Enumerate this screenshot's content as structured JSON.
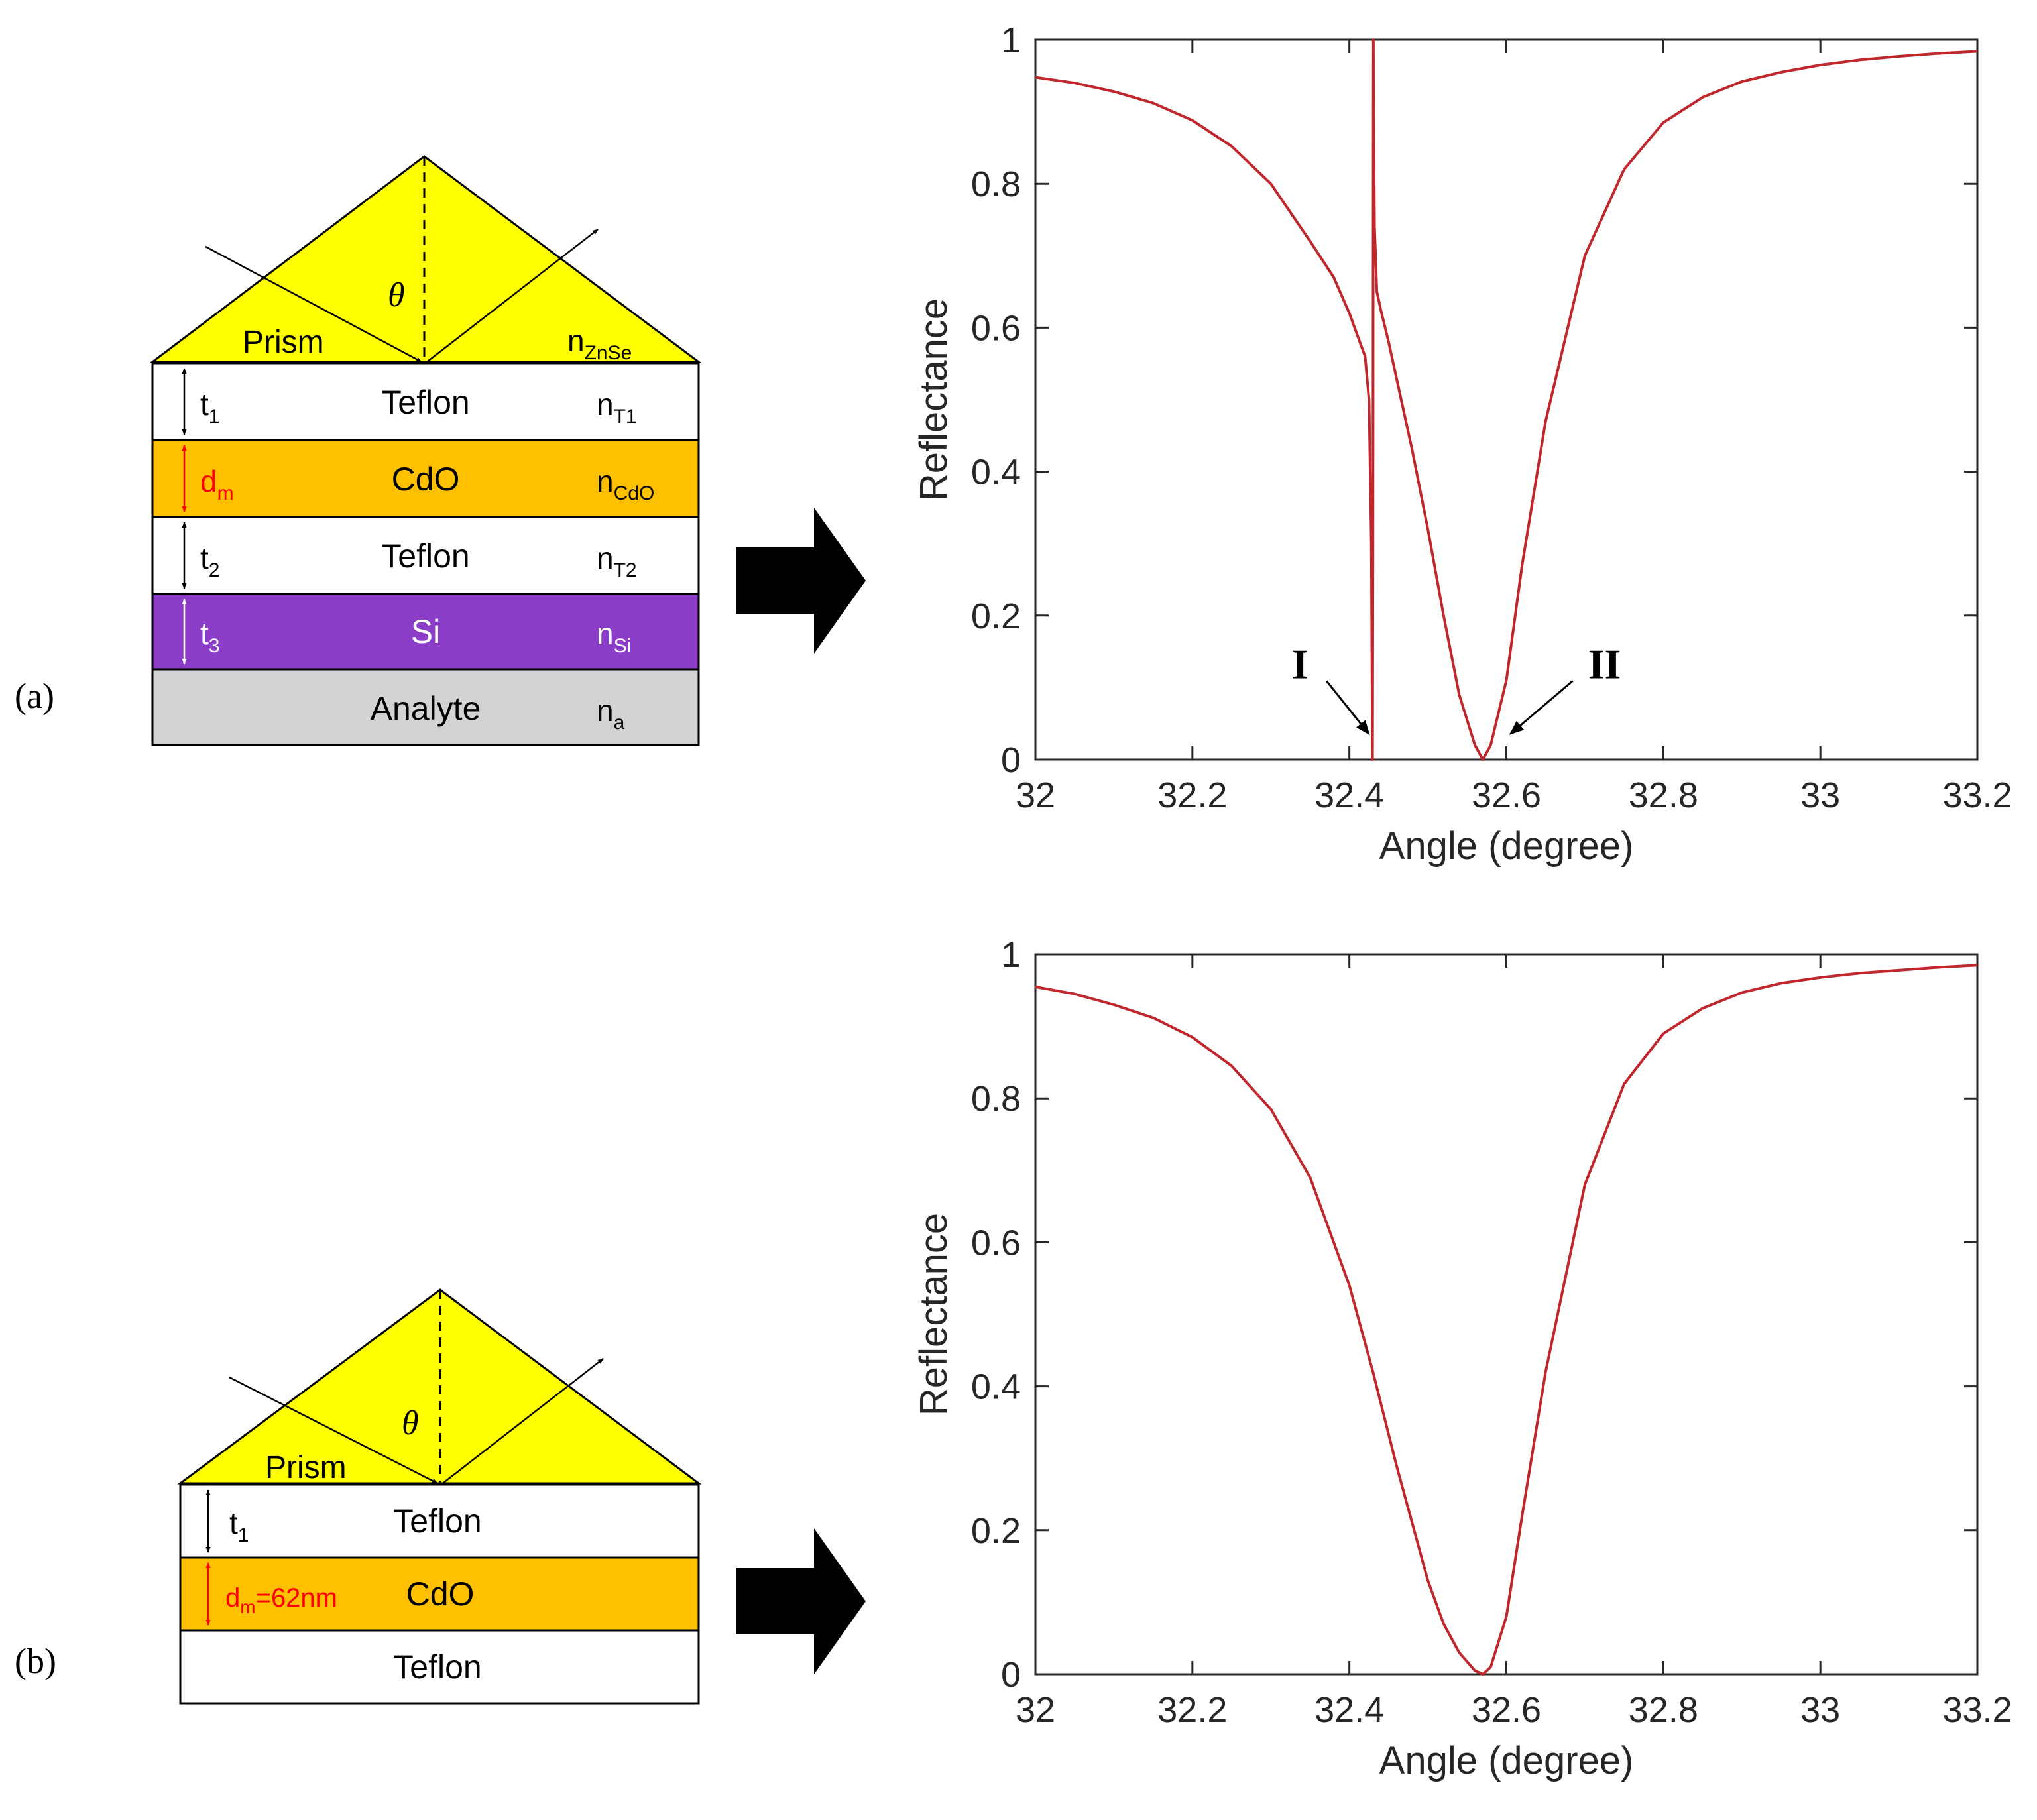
{
  "panels": {
    "a": {
      "label": "(a)",
      "prism": {
        "theta": "θ",
        "name": "Prism",
        "index_base": "n",
        "index_sub": "ZnSe"
      },
      "layers": [
        {
          "label": "Teflon",
          "thick_base": "t",
          "thick_sub": "1",
          "index_base": "n",
          "index_sub": "T1"
        },
        {
          "label": "CdO",
          "thick_base": "d",
          "thick_sub": "m",
          "index_base": "n",
          "index_sub": "CdO"
        },
        {
          "label": "Teflon",
          "thick_base": "t",
          "thick_sub": "2",
          "index_base": "n",
          "index_sub": "T2"
        },
        {
          "label": "Si",
          "thick_base": "t",
          "thick_sub": "3",
          "index_base": "n",
          "index_sub": "Si"
        },
        {
          "label": "Analyte",
          "index_base": "n",
          "index_sub": "a"
        }
      ]
    },
    "b": {
      "label": "(b)",
      "prism": {
        "theta": "θ",
        "name": "Prism"
      },
      "layers": [
        {
          "label": "Teflon",
          "thick_base": "t",
          "thick_sub": "1"
        },
        {
          "label": "CdO",
          "thick_base": "d",
          "thick_sub": "m",
          "thick_suffix": "=62nm"
        },
        {
          "label": "Teflon"
        }
      ]
    }
  },
  "colors": {
    "prism": "#ffff00",
    "cdo": "#ffc000",
    "si": "#8b3dc8",
    "analyte": "#d3d3d3",
    "teflon": "#ffffff",
    "curve": "#c0272d",
    "red_text": "#ff0000",
    "arrow": "#000000"
  },
  "chart_data": [
    {
      "type": "line",
      "title": "",
      "xlabel": "Angle (degree)",
      "ylabel": "Reflectance",
      "xlim": [
        32,
        33.2
      ],
      "ylim": [
        0,
        1
      ],
      "xticks": [
        "32",
        "32.2",
        "32.4",
        "32.6",
        "32.8",
        "33",
        "33.2"
      ],
      "yticks": [
        "0",
        "0.2",
        "0.4",
        "0.6",
        "0.8",
        "1"
      ],
      "annotations": [
        {
          "text": "I",
          "points_to": [
            32.43,
            0.03
          ]
        },
        {
          "text": "II",
          "points_to": [
            32.6,
            0.03
          ]
        }
      ],
      "series": [
        {
          "name": "Reflectance",
          "x": [
            32.0,
            32.05,
            32.1,
            32.15,
            32.2,
            32.25,
            32.3,
            32.35,
            32.38,
            32.4,
            32.41,
            32.42,
            32.425,
            32.428,
            32.429,
            32.4295,
            32.43,
            32.4305,
            32.431,
            32.432,
            32.435,
            32.44,
            32.45,
            32.46,
            32.48,
            32.5,
            32.52,
            32.54,
            32.56,
            32.57,
            32.58,
            32.6,
            32.62,
            32.65,
            32.7,
            32.75,
            32.8,
            32.85,
            32.9,
            32.95,
            33.0,
            33.05,
            33.1,
            33.15,
            33.2
          ],
          "y": [
            0.948,
            0.94,
            0.928,
            0.912,
            0.888,
            0.852,
            0.8,
            0.72,
            0.67,
            0.62,
            0.59,
            0.56,
            0.5,
            0.3,
            0.08,
            0.0,
            0.3,
            1.0,
            0.88,
            0.74,
            0.65,
            0.625,
            0.58,
            0.53,
            0.43,
            0.32,
            0.2,
            0.09,
            0.02,
            0.0,
            0.02,
            0.11,
            0.27,
            0.47,
            0.7,
            0.82,
            0.885,
            0.92,
            0.942,
            0.955,
            0.965,
            0.972,
            0.977,
            0.981,
            0.984
          ]
        }
      ]
    },
    {
      "type": "line",
      "title": "",
      "xlabel": "Angle (degree)",
      "ylabel": "Reflectance",
      "xlim": [
        32,
        33.2
      ],
      "ylim": [
        0,
        1
      ],
      "xticks": [
        "32",
        "32.2",
        "32.4",
        "32.6",
        "32.8",
        "33",
        "33.2"
      ],
      "yticks": [
        "0",
        "0.2",
        "0.4",
        "0.6",
        "0.8",
        "1"
      ],
      "series": [
        {
          "name": "Reflectance",
          "x": [
            32.0,
            32.05,
            32.1,
            32.15,
            32.2,
            32.25,
            32.3,
            32.35,
            32.4,
            32.43,
            32.46,
            32.5,
            32.52,
            32.54,
            32.56,
            32.57,
            32.58,
            32.6,
            32.62,
            32.65,
            32.7,
            32.75,
            32.8,
            32.85,
            32.9,
            32.95,
            33.0,
            33.05,
            33.1,
            33.15,
            33.2
          ],
          "y": [
            0.955,
            0.945,
            0.93,
            0.912,
            0.885,
            0.845,
            0.785,
            0.69,
            0.54,
            0.42,
            0.29,
            0.13,
            0.07,
            0.03,
            0.005,
            0.0,
            0.01,
            0.08,
            0.22,
            0.42,
            0.68,
            0.82,
            0.89,
            0.925,
            0.947,
            0.96,
            0.968,
            0.974,
            0.978,
            0.982,
            0.985
          ]
        }
      ]
    }
  ]
}
